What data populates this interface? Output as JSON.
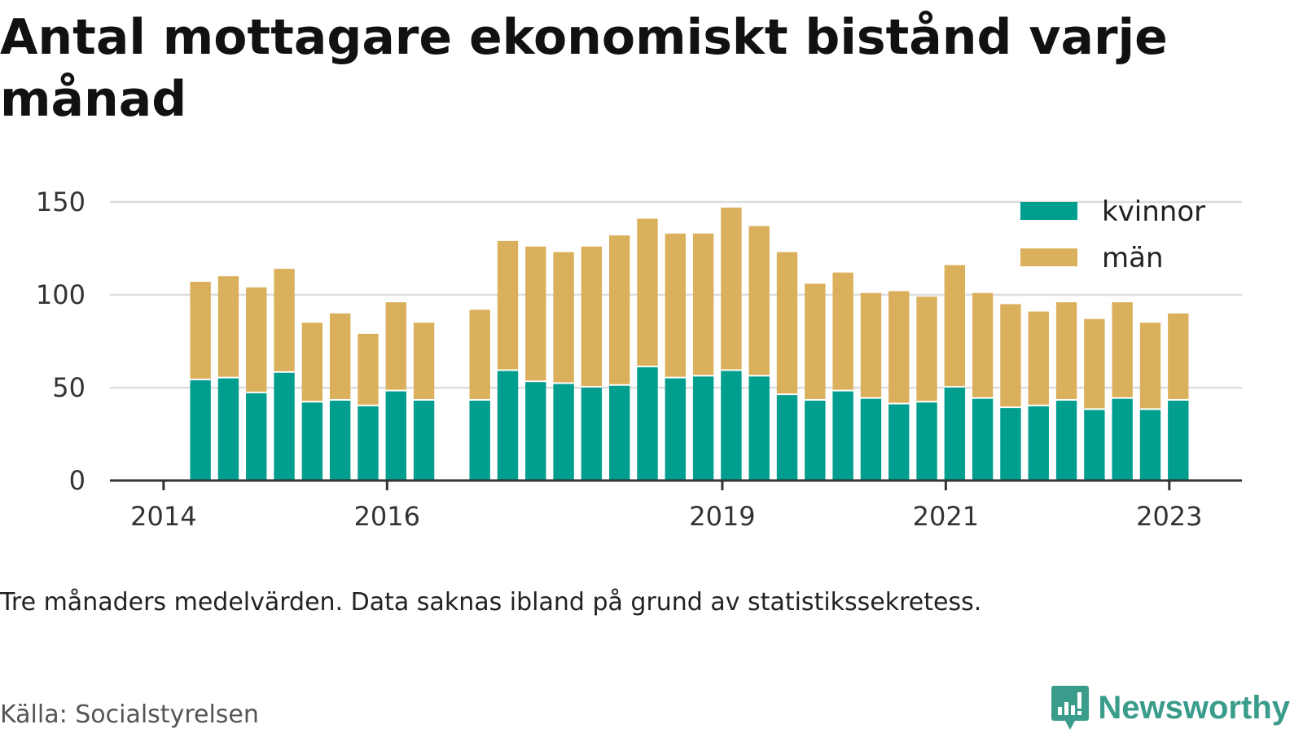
{
  "header": {
    "title": "Antal mottagare ekonomiskt bistånd varje månad"
  },
  "footer": {
    "note": "Tre månaders medelvärden. Data saknas ibland på grund av statistikssekretess.",
    "source": "Källa: Socialstyrelsen",
    "brand": "Newsworthy",
    "brand_icon": "bar-chart-speech-bubble-icon"
  },
  "colors": {
    "kvinnor": "#009e8e",
    "man": "#dbb05c",
    "grid": "#dddddd",
    "axis": "#333333",
    "brand": "#3a9c8a"
  },
  "chart_data": {
    "type": "bar",
    "stacked": true,
    "ylim": [
      0,
      150
    ],
    "yticks": [
      0,
      50,
      100,
      150
    ],
    "xticks": [
      {
        "label": "2014",
        "at": 2014.0
      },
      {
        "label": "2016",
        "at": 2016.0
      },
      {
        "label": "2019",
        "at": 2019.0
      },
      {
        "label": "2021",
        "at": 2021.0
      },
      {
        "label": "2023",
        "at": 2023.0
      }
    ],
    "xlim": [
      2013.52,
      2023.65
    ],
    "grid": true,
    "legend_position": "top-right",
    "x": [
      2014.33,
      2014.58,
      2014.83,
      2015.08,
      2015.33,
      2015.58,
      2015.83,
      2016.08,
      2016.33,
      2016.83,
      2017.08,
      2017.33,
      2017.58,
      2017.83,
      2018.08,
      2018.33,
      2018.58,
      2018.83,
      2019.08,
      2019.33,
      2019.58,
      2019.83,
      2020.08,
      2020.33,
      2020.58,
      2020.83,
      2021.08,
      2021.33,
      2021.58,
      2021.83,
      2022.08,
      2022.33,
      2022.58,
      2022.83,
      2023.08
    ],
    "series": [
      {
        "name": "kvinnor",
        "values": [
          54,
          55,
          47,
          58,
          42,
          43,
          40,
          48,
          43,
          43,
          59,
          53,
          52,
          50,
          51,
          61,
          55,
          56,
          59,
          56,
          46,
          43,
          48,
          44,
          41,
          42,
          50,
          44,
          39,
          40,
          43,
          38,
          44,
          38,
          43
        ]
      },
      {
        "name": "män",
        "values": [
          53,
          55,
          57,
          56,
          43,
          47,
          39,
          48,
          42,
          49,
          70,
          73,
          71,
          76,
          81,
          80,
          78,
          77,
          88,
          81,
          77,
          63,
          64,
          57,
          61,
          57,
          66,
          57,
          56,
          51,
          53,
          49,
          52,
          47,
          47
        ]
      }
    ]
  }
}
